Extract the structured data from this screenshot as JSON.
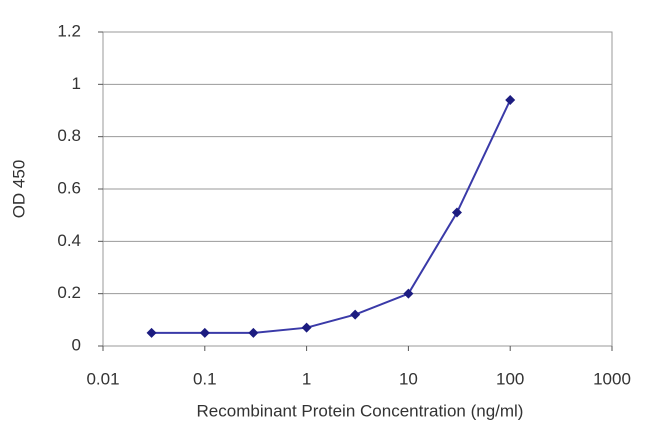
{
  "chart_data": {
    "type": "line",
    "xlabel": "Recombinant Protein Concentration (ng/ml)",
    "ylabel": "OD 450",
    "x": [
      0.03,
      0.1,
      0.3,
      1,
      3,
      10,
      30,
      100
    ],
    "values": [
      0.05,
      0.05,
      0.05,
      0.07,
      0.12,
      0.2,
      0.51,
      0.94
    ],
    "color": "#3a3aa8",
    "marker_color": "#1c1c80",
    "xscale": "log",
    "xlim": [
      0.01,
      1000
    ],
    "xticks": [
      0.01,
      0.1,
      1,
      10,
      100,
      1000
    ],
    "ylim": [
      0,
      1.2
    ],
    "yticks": [
      0,
      0.2,
      0.4,
      0.6,
      0.8,
      1,
      1.2
    ],
    "grid": true
  }
}
